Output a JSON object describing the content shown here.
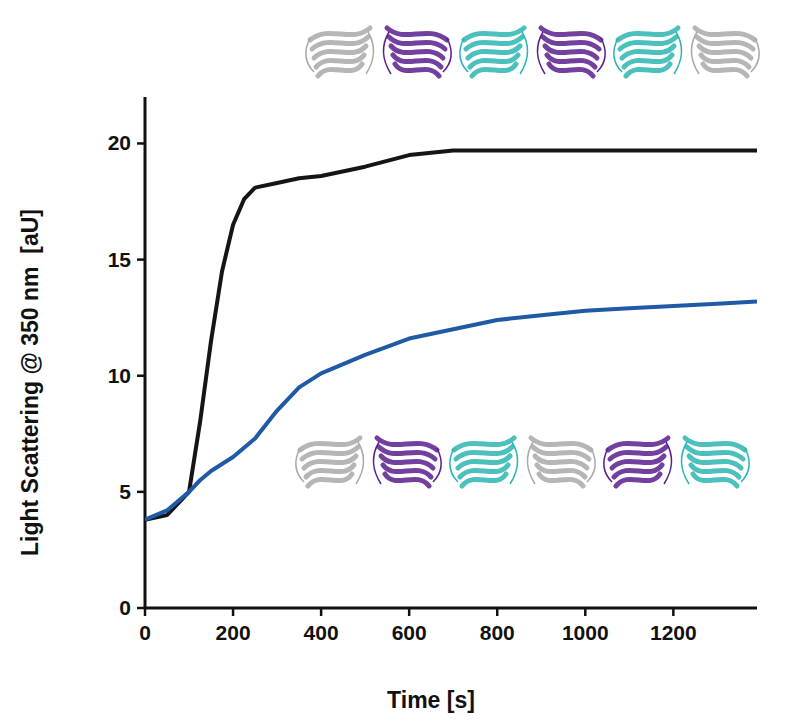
{
  "chart_data": {
    "type": "line",
    "x_label": "Time [s]",
    "y_label": "Light Scattering @ 350 nm  [aU]",
    "x": [
      0,
      50,
      100,
      125,
      150,
      175,
      200,
      225,
      250,
      300,
      350,
      400,
      500,
      600,
      700,
      800,
      900,
      1000,
      1100,
      1200,
      1300,
      1390
    ],
    "series": [
      {
        "color": "#151515",
        "values": [
          3.8,
          4.0,
          5.0,
          8.0,
          11.5,
          14.5,
          16.5,
          17.6,
          18.1,
          18.3,
          18.5,
          18.6,
          19.0,
          19.5,
          19.7,
          19.7,
          19.7,
          19.7,
          19.7,
          19.7,
          19.7,
          19.7
        ]
      },
      {
        "color": "#1f5aa6",
        "values": [
          3.8,
          4.2,
          5.0,
          5.5,
          5.9,
          6.2,
          6.5,
          6.9,
          7.3,
          8.5,
          9.5,
          10.1,
          10.9,
          11.6,
          12.0,
          12.4,
          12.6,
          12.8,
          12.9,
          13.0,
          13.1,
          13.2
        ]
      }
    ],
    "xlim": [
      0,
      1390
    ],
    "ylim": [
      0,
      22
    ],
    "xticks": [
      0,
      200,
      400,
      600,
      800,
      1000,
      1200
    ],
    "yticks": [
      0,
      5,
      10,
      15,
      20
    ],
    "grid": false
  }
}
